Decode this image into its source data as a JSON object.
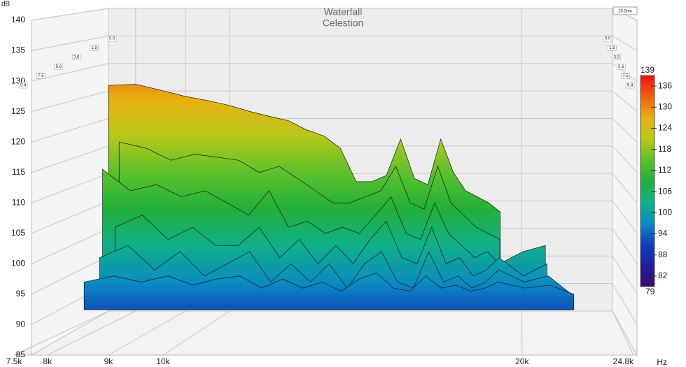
{
  "chart_data": {
    "type": "waterfall",
    "title": "Waterfall",
    "subtitle": "Celestion",
    "y_unit": "dB",
    "x_unit": "Hz",
    "time_end": "10.0ms",
    "xlim": [
      7500,
      24800
    ],
    "xticks": [
      {
        "value": 7500,
        "label": "7.5k"
      },
      {
        "value": 8000,
        "label": "8k"
      },
      {
        "value": 9000,
        "label": "9k"
      },
      {
        "value": 10000,
        "label": "10k"
      },
      {
        "value": 20000,
        "label": "20k"
      },
      {
        "value": 24800,
        "label": "24.8k"
      }
    ],
    "ylim": [
      85,
      140
    ],
    "yticks": [
      85,
      90,
      95,
      100,
      105,
      110,
      115,
      120,
      125,
      130,
      135,
      140
    ],
    "x": [
      7500,
      8000,
      8500,
      9000,
      9500,
      10000,
      10500,
      11000,
      11500,
      12000,
      12500,
      13000,
      13500,
      14000,
      14500,
      15000,
      15500,
      16000,
      16500,
      17000,
      17500,
      18000,
      18500,
      19000,
      20000,
      21000,
      22000
    ],
    "series": [
      {
        "name": "0.0",
        "values": [
          129.3,
          129.5,
          128.5,
          127.5,
          126.8,
          126,
          125,
          124.2,
          123.5,
          122,
          121,
          119,
          113.5,
          113.5,
          114.5,
          120.5,
          114,
          113,
          120.5,
          115,
          112,
          111,
          110,
          108.5,
          null,
          null,
          null
        ]
      },
      {
        "name": "1.9",
        "values": [
          null,
          120,
          119,
          117,
          118,
          117.5,
          117,
          115,
          116,
          114,
          112,
          110,
          110,
          111,
          112,
          116,
          110,
          109,
          116,
          110,
          108,
          106,
          105,
          104,
          null,
          null,
          null
        ]
      },
      {
        "name": "3.8",
        "values": [
          null,
          115.5,
          112,
          113,
          111,
          112,
          110,
          108,
          112,
          106,
          107,
          105,
          106,
          105,
          108,
          111,
          105,
          104,
          110,
          105,
          103,
          101,
          102,
          100,
          102,
          103,
          null
        ]
      },
      {
        "name": "5.6",
        "values": [
          null,
          null,
          106,
          108,
          104,
          106,
          103,
          103,
          106,
          101,
          104,
          100,
          103,
          100,
          104,
          107,
          101,
          100,
          106,
          100,
          101,
          98,
          99,
          101,
          98,
          100,
          null
        ]
      },
      {
        "name": "7.5",
        "values": [
          null,
          null,
          101,
          103,
          99,
          102,
          98,
          100,
          102,
          97,
          100,
          97,
          100,
          96,
          100,
          102,
          97,
          96,
          102,
          97,
          98,
          96,
          97,
          99,
          97,
          98,
          95
        ]
      },
      {
        "name": "9.4",
        "values": [
          null,
          null,
          97,
          98,
          97,
          98,
          96.5,
          97.5,
          98,
          96,
          97.5,
          96,
          97,
          95.5,
          97.5,
          98.5,
          96,
          95.5,
          98,
          96,
          96.5,
          95.5,
          96,
          97,
          96,
          96.5,
          95
        ]
      }
    ],
    "colorbar": {
      "min": 79,
      "max": 139,
      "ticks": [
        82,
        88,
        94,
        100,
        106,
        112,
        118,
        124,
        130,
        136
      ],
      "colors": [
        "#3a0a6e",
        "#1e1e9a",
        "#1040c0",
        "#0a8cc0",
        "#10b08a",
        "#22b03a",
        "#5cc02a",
        "#b8c81a",
        "#e8b010",
        "#f06010",
        "#f01010"
      ]
    },
    "grid": true
  }
}
